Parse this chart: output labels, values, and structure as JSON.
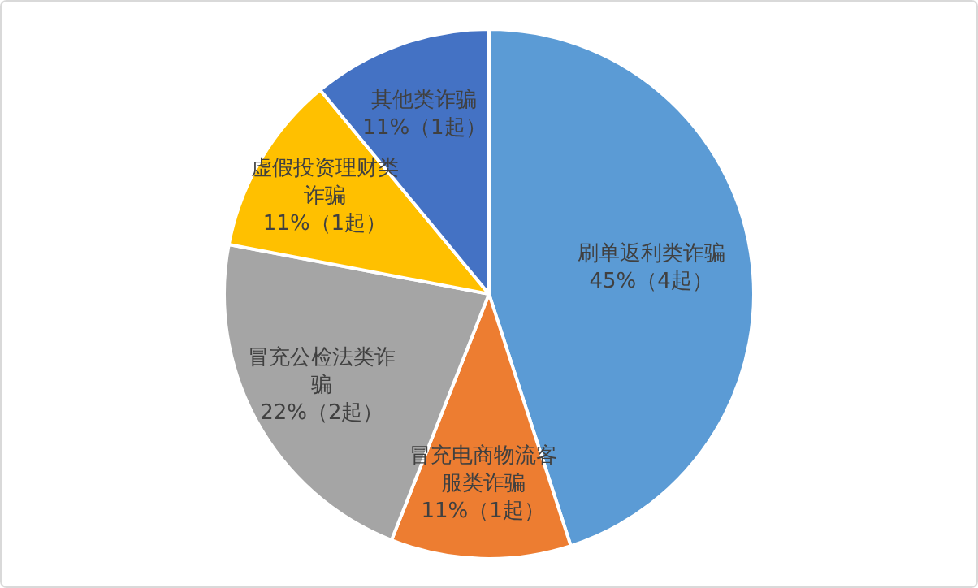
{
  "chart_data": {
    "type": "pie",
    "categories": [
      "刷单返利类诈骗",
      "冒充电商物流客服类诈骗",
      "冒充公检法类诈骗",
      "虚假投资理财类诈骗",
      "其他类诈骗"
    ],
    "values": [
      45,
      11,
      22,
      11,
      11
    ],
    "colors": [
      "#5b9bd5",
      "#ed7d31",
      "#a5a5a5",
      "#ffc000",
      "#4472c4"
    ],
    "value_labels": [
      "45%（4起）",
      "11%（1起）",
      "22%（2起）",
      "11%（1起）",
      "11%（1起）"
    ],
    "legend": false
  }
}
